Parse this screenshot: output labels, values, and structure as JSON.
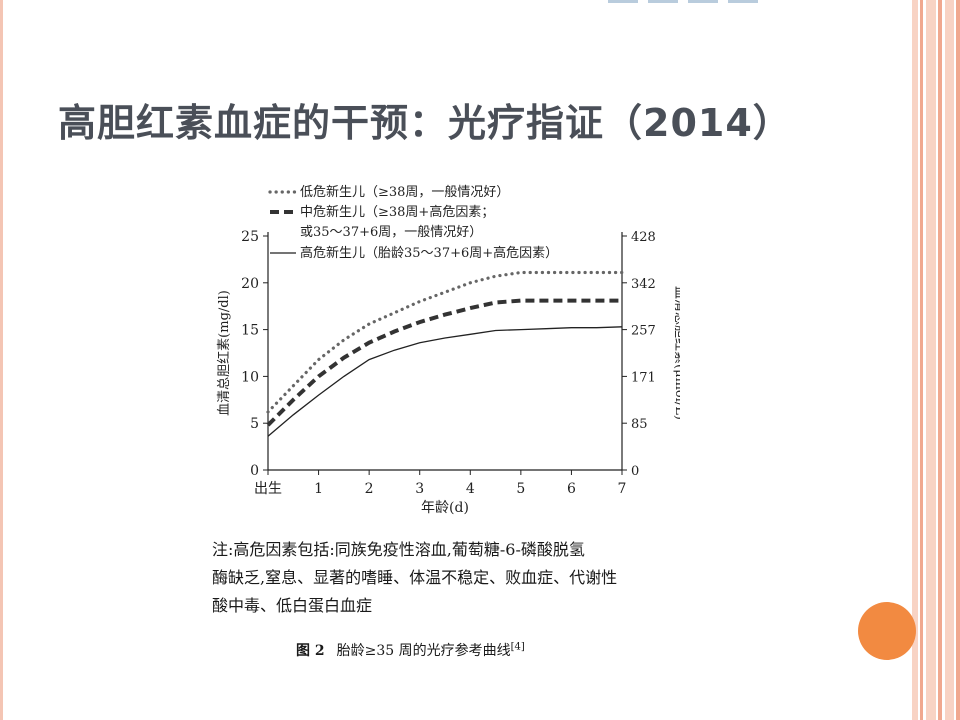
{
  "slide": {
    "title": "高胆红素血症的干预：光疗指证（2014）",
    "colors": {
      "title": "#4a4f58",
      "accent_dot": "#f28a41",
      "stripe": "#f0a88f",
      "stripe_light": "#f8d3c4"
    }
  },
  "figure": {
    "note_lines": [
      "注:高危因素包括:同族免疫性溶血,葡萄糖-6-磷酸脱氢",
      "酶缺乏,窒息、显著的嗜睡、体温不稳定、败血症、代谢性",
      "酸中毒、低白蛋白血症"
    ],
    "caption_number": "图 2",
    "caption_text": "胎龄≥35 周的光疗参考曲线",
    "caption_ref": "[4]"
  },
  "chart_data": {
    "type": "line",
    "xlabel": "年龄(d)",
    "ylabel": "血清总胆红素(mg/dl)",
    "ylabel_right": "血清总胆红素(μmol/L)",
    "x_tick_labels": [
      "出生",
      "1",
      "2",
      "3",
      "4",
      "5",
      "6",
      "7"
    ],
    "y_ticks": [
      0,
      5,
      10,
      15,
      20,
      25
    ],
    "y_ticks_right": [
      "0",
      "85",
      "171",
      "257",
      "342",
      "428"
    ],
    "xlim": [
      0,
      7
    ],
    "ylim": [
      0,
      25
    ],
    "x": [
      0,
      0.5,
      1,
      1.5,
      2,
      2.5,
      3,
      3.5,
      4,
      4.5,
      5,
      5.5,
      6,
      6.5,
      7
    ],
    "series": [
      {
        "name": "低危新生儿（≥38周，一般情况好）",
        "style": "dotted",
        "values": [
          6.2,
          9.0,
          11.8,
          13.9,
          15.6,
          16.8,
          18.0,
          19.0,
          20.0,
          20.7,
          21.1,
          21.1,
          21.1,
          21.1,
          21.1
        ]
      },
      {
        "name": "中危新生儿（≥38周+高危因素；或35～37+6周，一般情况好）",
        "style": "dashed",
        "values": [
          4.8,
          7.5,
          10.0,
          12.0,
          13.6,
          14.8,
          15.8,
          16.6,
          17.3,
          17.9,
          18.1,
          18.1,
          18.1,
          18.1,
          18.1
        ]
      },
      {
        "name": "高危新生儿（胎龄35～37+6周+高危因素）",
        "style": "solid",
        "values": [
          3.6,
          5.9,
          8.0,
          10.0,
          11.8,
          12.8,
          13.6,
          14.1,
          14.5,
          14.9,
          15.0,
          15.1,
          15.2,
          15.2,
          15.3
        ]
      }
    ],
    "legend_position": "top-left",
    "grid": false
  }
}
